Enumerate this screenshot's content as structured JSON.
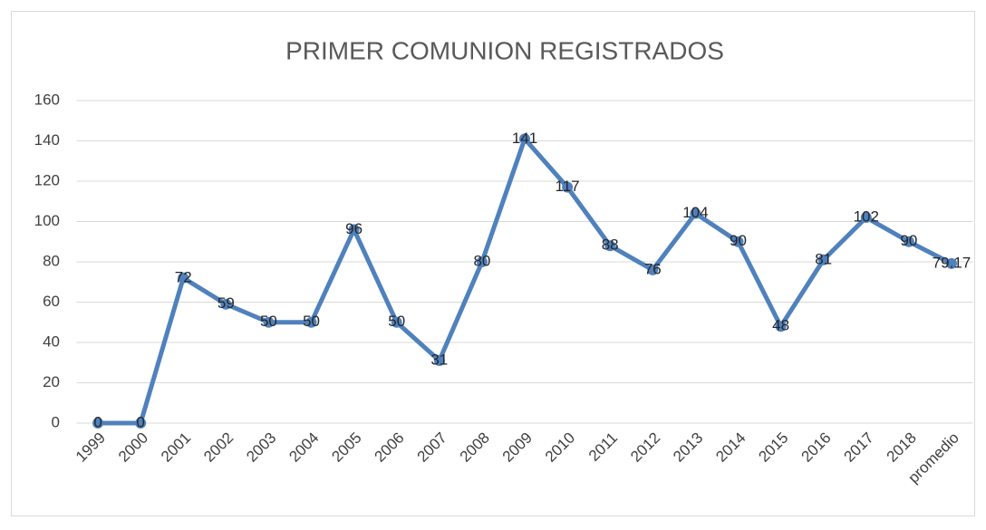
{
  "chart_data": {
    "type": "line",
    "title": "PRIMER COMUNION REGISTRADOS",
    "categories": [
      "1999",
      "2000",
      "2001",
      "2002",
      "2003",
      "2004",
      "2005",
      "2006",
      "2007",
      "2008",
      "2009",
      "2010",
      "2011",
      "2012",
      "2013",
      "2014",
      "2015",
      "2016",
      "2017",
      "2018",
      "promedio"
    ],
    "series": [
      {
        "name": "PRIMER COMUNION REGISTRADOS",
        "color": "#4f81bd",
        "values": [
          0,
          0,
          72,
          59,
          50,
          50,
          96,
          50,
          31,
          80,
          141,
          117,
          88,
          76,
          104,
          90,
          48,
          81,
          102,
          90,
          79.17
        ]
      }
    ],
    "ylim": [
      0,
      160
    ],
    "yticks": [
      0,
      20,
      40,
      60,
      80,
      100,
      120,
      140,
      160
    ],
    "grid": true
  }
}
